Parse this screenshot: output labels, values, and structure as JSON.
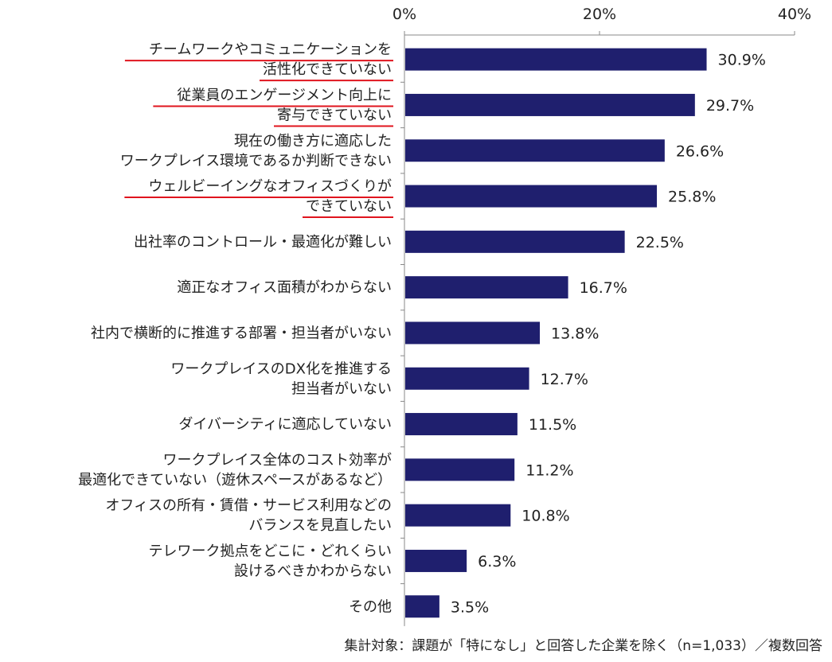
{
  "chart_data": {
    "type": "bar",
    "orientation": "horizontal",
    "title": "",
    "xlabel": "",
    "ylabel": "",
    "xlim": [
      0,
      40
    ],
    "x_ticks": [
      {
        "value": 0,
        "label": "0%"
      },
      {
        "value": 20,
        "label": "20%"
      },
      {
        "value": 40,
        "label": "40%"
      }
    ],
    "grid": false,
    "bar_color": "#1f1f6e",
    "highlight_color": "#e0141e",
    "categories": [
      {
        "lines": [
          "チームワークやコミュニケーションを",
          "活性化できていない"
        ],
        "highlighted": true
      },
      {
        "lines": [
          "従業員のエンゲージメント向上に",
          "寄与できていない"
        ],
        "highlighted": true
      },
      {
        "lines": [
          "現在の働き方に適応した",
          "ワークプレイス環境であるか判断できない"
        ],
        "highlighted": false
      },
      {
        "lines": [
          "ウェルビーイングなオフィスづくりが",
          "できていない"
        ],
        "highlighted": true
      },
      {
        "lines": [
          "出社率のコントロール・最適化が難しい"
        ],
        "highlighted": false
      },
      {
        "lines": [
          "適正なオフィス面積がわからない"
        ],
        "highlighted": false
      },
      {
        "lines": [
          "社内で横断的に推進する部署・担当者がいない"
        ],
        "highlighted": false
      },
      {
        "lines": [
          "ワークプレイスのDX化を推進する",
          "担当者がいない"
        ],
        "highlighted": false
      },
      {
        "lines": [
          "ダイバーシティに適応していない"
        ],
        "highlighted": false
      },
      {
        "lines": [
          "ワークプレイス全体のコスト効率が",
          "最適化できていない（遊休スペースがあるなど）"
        ],
        "highlighted": false
      },
      {
        "lines": [
          "オフィスの所有・賃借・サービス利用などの",
          "バランスを見直したい"
        ],
        "highlighted": false
      },
      {
        "lines": [
          "テレワーク拠点をどこに・どれくらい",
          "設けるべきかわからない"
        ],
        "highlighted": false
      },
      {
        "lines": [
          "その他"
        ],
        "highlighted": false
      }
    ],
    "values": [
      30.9,
      29.7,
      26.6,
      25.8,
      22.5,
      16.7,
      13.8,
      12.7,
      11.5,
      11.2,
      10.8,
      6.3,
      3.5
    ],
    "value_labels": [
      "30.9%",
      "29.7%",
      "26.6%",
      "25.8%",
      "22.5%",
      "16.7%",
      "13.8%",
      "12.7%",
      "11.5%",
      "11.2%",
      "10.8%",
      "6.3%",
      "3.5%"
    ]
  },
  "footnote": "集計対象：課題が「特になし」と回答した企業を除く（n=1,033）／複数回答"
}
